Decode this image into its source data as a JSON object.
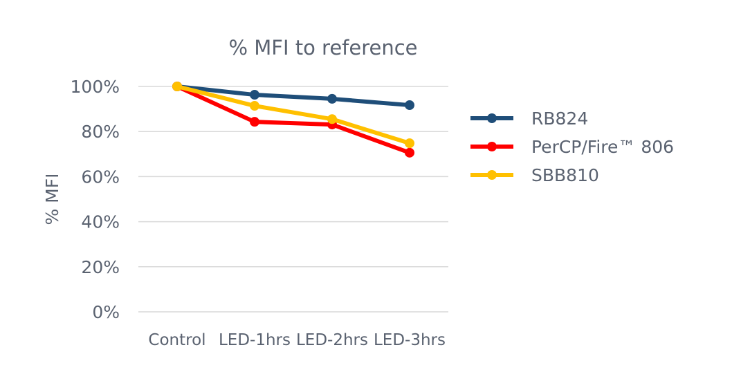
{
  "chart_data": {
    "type": "line",
    "title": "% MFI to reference",
    "xlabel": "",
    "ylabel": "% MFI",
    "categories": [
      "Control",
      "LED-1hrs",
      "LED-2hrs",
      "LED-3hrs"
    ],
    "ylim": [
      0,
      100
    ],
    "yticks": [
      0,
      20,
      40,
      60,
      80,
      100
    ],
    "ytick_labels": [
      "0%",
      "20%",
      "40%",
      "60%",
      "80%",
      "100%"
    ],
    "grid": true,
    "legend_position": "right",
    "series": [
      {
        "name": "RB824",
        "color": "#1f4e79",
        "values": [
          100,
          96.3,
          94.5,
          91.7
        ]
      },
      {
        "name": "PerCP/Fire™ 806",
        "color": "#ff0000",
        "values": [
          100,
          84.3,
          83.1,
          70.6
        ]
      },
      {
        "name": "SBB810",
        "color": "#ffc000",
        "values": [
          100,
          91.4,
          85.5,
          74.8
        ]
      }
    ]
  }
}
